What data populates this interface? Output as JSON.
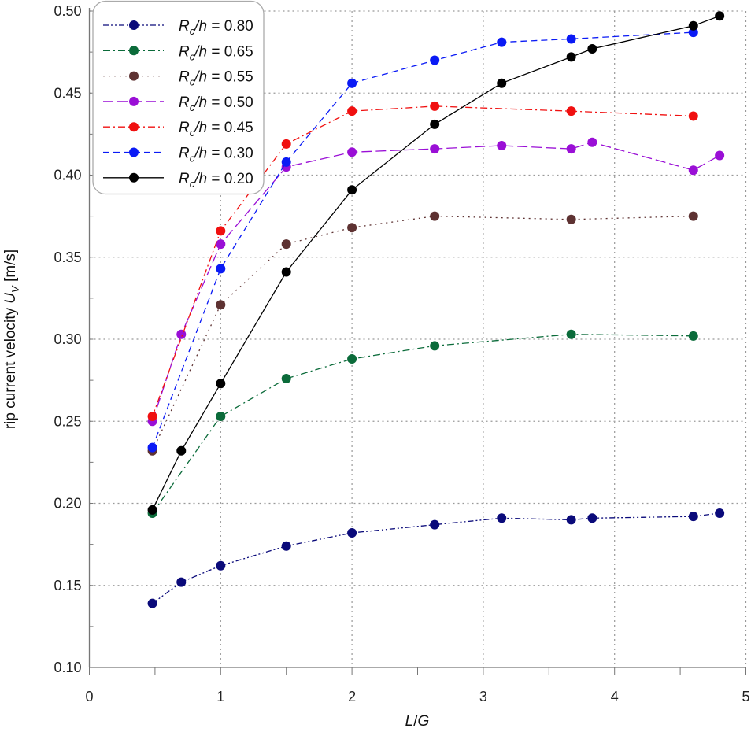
{
  "chart_data": {
    "type": "line",
    "title": "",
    "xlabel": "L/G",
    "ylabel": "rip current velocity U_V [m/s]",
    "ylabel_parts": {
      "text": "rip current velocity ",
      "var": "U",
      "sub": "V",
      "unit": " [m/s]"
    },
    "xlabel_parts": {
      "var1": "L",
      "sep": "/",
      "var2": "G"
    },
    "xlim": [
      0,
      5
    ],
    "ylim": [
      0.1,
      0.5
    ],
    "xticks": [
      "0",
      "1",
      "2",
      "3",
      "4",
      "5"
    ],
    "yticks": [
      "0.10",
      "0.15",
      "0.20",
      "0.25",
      "0.30",
      "0.35",
      "0.40",
      "0.45",
      "0.50"
    ],
    "grid": true,
    "legend_position": "top-left",
    "series": [
      {
        "name": "Rc/h = 0.80",
        "color": "#0a0a7a",
        "style": "dash-dot-dot",
        "x": [
          0.48,
          0.7,
          1.0,
          1.5,
          2.0,
          2.63,
          3.14,
          3.67,
          3.83,
          4.6,
          4.8
        ],
        "y": [
          0.139,
          0.152,
          0.162,
          0.174,
          0.182,
          0.187,
          0.191,
          0.19,
          0.191,
          0.192,
          0.194
        ]
      },
      {
        "name": "Rc/h = 0.65",
        "color": "#0b6b3a",
        "style": "dash-dot",
        "x": [
          0.48,
          1.0,
          1.5,
          2.0,
          2.63,
          3.67,
          4.6
        ],
        "y": [
          0.194,
          0.253,
          0.276,
          0.288,
          0.296,
          0.303,
          0.302
        ]
      },
      {
        "name": "Rc/h = 0.55",
        "color": "#5e3232",
        "style": "dotted",
        "x": [
          0.48,
          1.0,
          1.5,
          2.0,
          2.63,
          3.67,
          4.6
        ],
        "y": [
          0.232,
          0.321,
          0.358,
          0.368,
          0.375,
          0.373,
          0.375
        ]
      },
      {
        "name": "Rc/h = 0.50",
        "color": "#9a0fd6",
        "style": "long-dash",
        "x": [
          0.48,
          0.7,
          1.0,
          1.5,
          2.0,
          2.63,
          3.14,
          3.67,
          3.83,
          4.6,
          4.8
        ],
        "y": [
          0.25,
          0.303,
          0.358,
          0.405,
          0.414,
          0.416,
          0.418,
          0.416,
          0.42,
          0.403,
          0.412
        ]
      },
      {
        "name": "Rc/h = 0.45",
        "color": "#f01010",
        "style": "dash-dot",
        "x": [
          0.48,
          1.0,
          1.5,
          2.0,
          2.63,
          3.67,
          4.6
        ],
        "y": [
          0.253,
          0.366,
          0.419,
          0.439,
          0.442,
          0.439,
          0.436
        ]
      },
      {
        "name": "Rc/h = 0.30",
        "color": "#0a1af5",
        "style": "dashed",
        "x": [
          0.48,
          1.0,
          1.5,
          2.0,
          2.63,
          3.14,
          3.67,
          4.6
        ],
        "y": [
          0.234,
          0.343,
          0.408,
          0.456,
          0.47,
          0.481,
          0.483,
          0.487
        ]
      },
      {
        "name": "Rc/h = 0.20",
        "color": "#000000",
        "style": "solid",
        "x": [
          0.48,
          0.7,
          1.0,
          1.5,
          2.0,
          2.63,
          3.14,
          3.67,
          3.83,
          4.6,
          4.8
        ],
        "y": [
          0.196,
          0.232,
          0.273,
          0.341,
          0.391,
          0.431,
          0.456,
          0.472,
          0.477,
          0.491,
          0.497
        ]
      }
    ]
  }
}
